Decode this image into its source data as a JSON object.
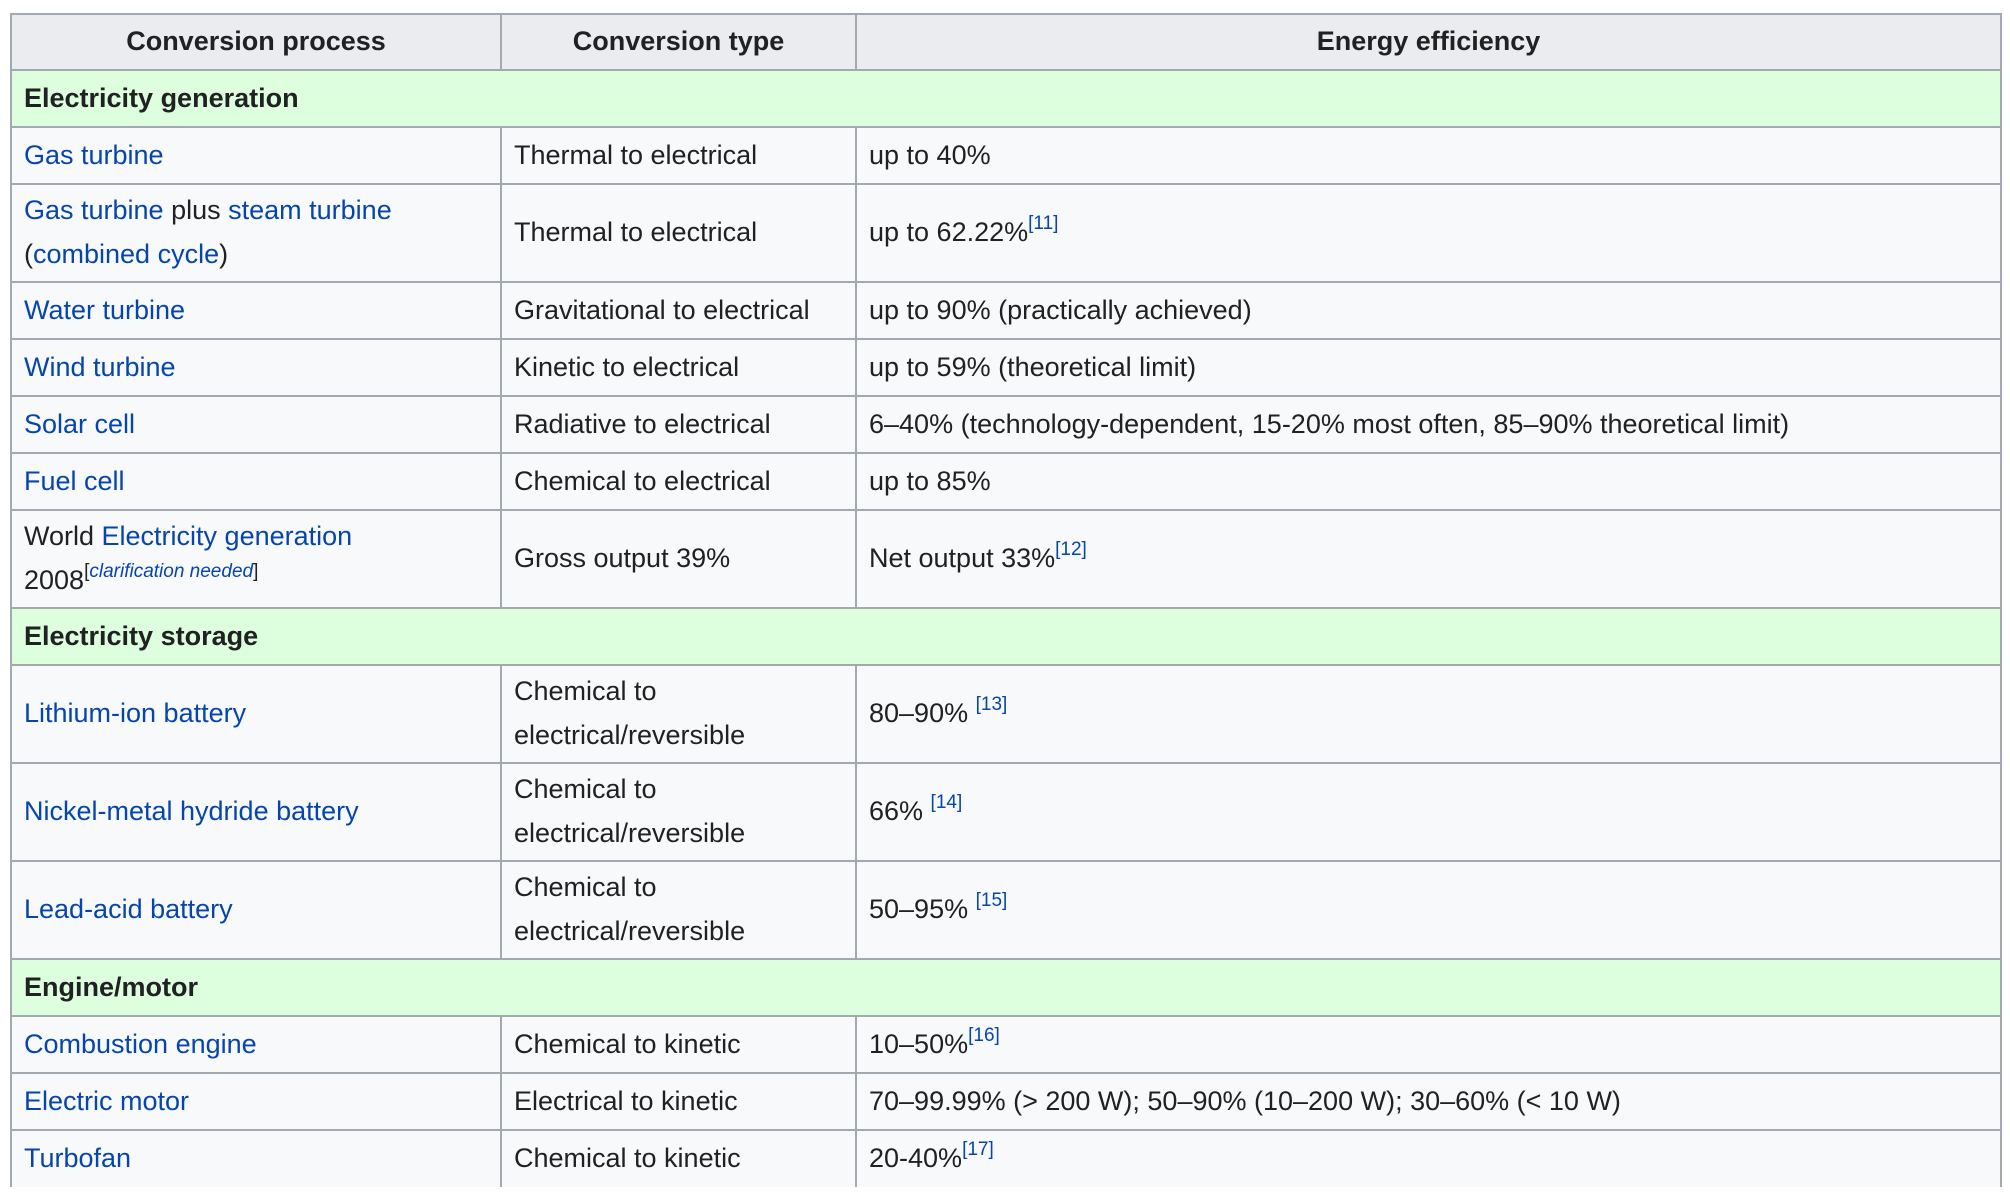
{
  "table": {
    "headers": [
      "Conversion process",
      "Conversion type",
      "Energy efficiency"
    ],
    "sections": {
      "generation": "Electricity generation",
      "storage": "Electricity storage",
      "engine": "Engine/motor"
    },
    "rows": [
      {
        "process_link": "Gas turbine",
        "type": "Thermal to electrical",
        "efficiency": "up to 40%"
      },
      {
        "process_link": "Gas turbine",
        "process_mid": " plus ",
        "process_link2": "steam turbine",
        "process_open": " (",
        "process_link3": "combined cycle",
        "process_close": ")",
        "type": "Thermal to electrical",
        "efficiency": "up to 62.22%",
        "ref": "[11]"
      },
      {
        "process_link": "Water turbine",
        "type": "Gravitational to electrical",
        "efficiency": "up to 90% (practically achieved)"
      },
      {
        "process_link": "Wind turbine",
        "type": "Kinetic to electrical",
        "efficiency": "up to 59% (theoretical limit)"
      },
      {
        "process_link": "Solar cell",
        "type": "Radiative to electrical",
        "efficiency": "6–40% (technology-dependent, 15-20% most often, 85–90% theoretical limit)"
      },
      {
        "process_link": "Fuel cell",
        "type": "Chemical to electrical",
        "efficiency": "up to 85%"
      },
      {
        "process_pre": "World ",
        "process_link": "Electricity generation",
        "process_post": " 2008",
        "clar_open": "[",
        "clar_text": "clarification needed",
        "clar_close": "]",
        "type": "Gross output 39%",
        "efficiency": "Net output 33%",
        "ref": "[12]"
      },
      {
        "process_link": "Lithium-ion battery",
        "type": "Chemical to electrical/reversible",
        "efficiency": "80–90% ",
        "ref": "[13]"
      },
      {
        "process_link": "Nickel-metal hydride battery",
        "type": "Chemical to electrical/reversible",
        "efficiency": "66% ",
        "ref": "[14]"
      },
      {
        "process_link": "Lead-acid battery",
        "type": "Chemical to electrical/reversible",
        "efficiency": "50–95% ",
        "ref": "[15]"
      },
      {
        "process_link": "Combustion engine",
        "type": "Chemical to kinetic",
        "efficiency": "10–50%",
        "ref": "[16]"
      },
      {
        "process_link": "Electric motor",
        "type": "Electrical to kinetic",
        "efficiency": "70–99.99% (> 200 W); 50–90% (10–200 W); 30–60% (< 10 W)"
      },
      {
        "process_link": "Turbofan",
        "type": "Chemical to kinetic",
        "efficiency": "20-40%",
        "ref": "[17]"
      }
    ]
  },
  "colors": {
    "link": "#0645ad",
    "header_bg": "#eaecf0",
    "section_bg": "#ddffdd",
    "cell_bg": "#f8f9fa",
    "border": "#a2a9b1"
  }
}
